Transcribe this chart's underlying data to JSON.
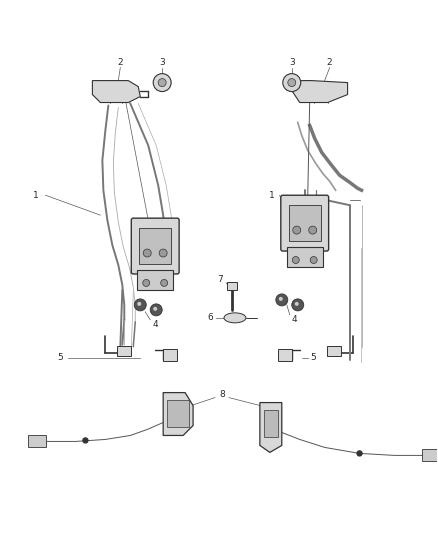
{
  "bg": "#ffffff",
  "lc": "#2a2a2a",
  "gc": "#888888",
  "fig_w": 4.38,
  "fig_h": 5.33,
  "dpi": 100,
  "label_fs": 6.5,
  "callout_lc": "#555555",
  "part_fill": "#d8d8d8",
  "part_edge": "#333333",
  "strap_color": "#777777",
  "strap_lw": 1.4,
  "wire_color": "#555555",
  "wire_lw": 0.7
}
